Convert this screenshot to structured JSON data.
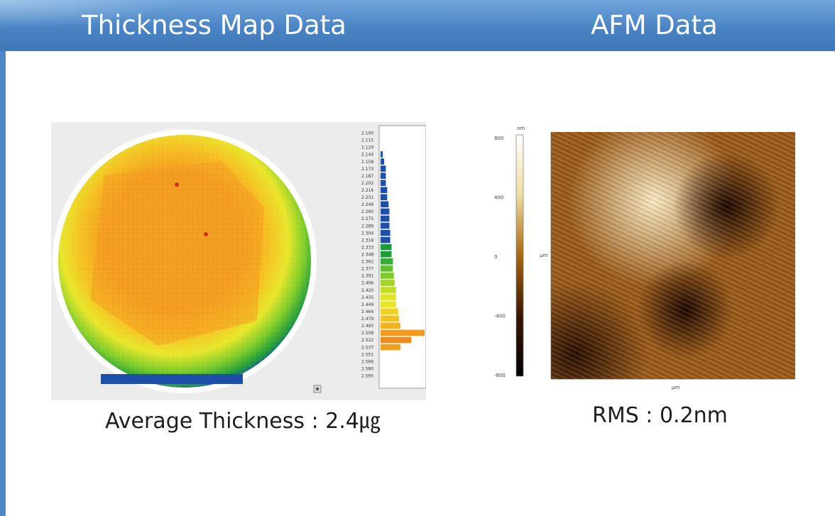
{
  "header": {
    "left_title": "Thickness Map Data",
    "right_title": "AFM Data"
  },
  "captions": {
    "thickness": "Average Thickness : 2.4㎍",
    "afm": "RMS : 0.2nm"
  },
  "thickness_scale": [
    "2.100",
    "2.115",
    "2.129",
    "2.144",
    "2.158",
    "2.173",
    "2.187",
    "2.202",
    "2.216",
    "2.231",
    "2.246",
    "2.260",
    "2.275",
    "2.289",
    "2.304",
    "2.318",
    "2.333",
    "2.348",
    "2.362",
    "2.377",
    "2.391",
    "2.406",
    "2.420",
    "2.435",
    "2.449",
    "2.464",
    "2.479",
    "2.493",
    "2.508",
    "2.522",
    "2.537",
    "2.551",
    "2.566",
    "2.580",
    "2.595"
  ],
  "histogram": [
    0,
    0,
    0,
    0.05,
    0.08,
    0.12,
    0.12,
    0.12,
    0.15,
    0.15,
    0.18,
    0.2,
    0.2,
    0.2,
    0.22,
    0.22,
    0.25,
    0.25,
    0.28,
    0.28,
    0.3,
    0.32,
    0.35,
    0.35,
    0.35,
    0.4,
    0.42,
    0.45,
    1.0,
    0.7,
    0.45,
    0,
    0,
    0,
    0
  ],
  "afm_scale": {
    "top_unit": "nm",
    "ticks": [
      "800",
      "400",
      "0",
      "-400",
      "-800"
    ],
    "x_unit": "µm",
    "y_unit": "µm"
  },
  "colors": {
    "header": "#4a83c4",
    "text": "#1e1e1e"
  }
}
